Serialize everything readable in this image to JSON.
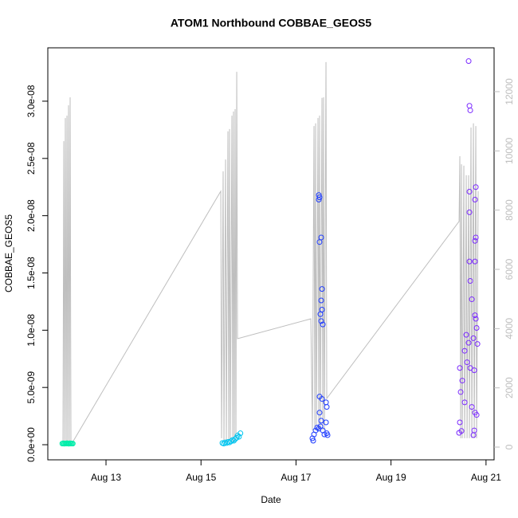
{
  "chart_data": {
    "type": "scatter",
    "title": "ATOM1 Northbound COBBAE_GEOS5",
    "x_label": "Date",
    "y_label": "COBBAE_GEOS5",
    "xlim": [
      11.775,
      21.17
    ],
    "xticks": [
      {
        "value": 13,
        "label": "Aug 13"
      },
      {
        "value": 15,
        "label": "Aug 15"
      },
      {
        "value": 17,
        "label": "Aug 17"
      },
      {
        "value": 19,
        "label": "Aug 19"
      },
      {
        "value": 21,
        "label": "Aug 21"
      }
    ],
    "ylim": [
      -1.32e-09,
      3.466e-08
    ],
    "yticks": [
      {
        "value": 0,
        "label": "0.0e+00"
      },
      {
        "value": 5e-09,
        "label": "5.0e-09"
      },
      {
        "value": 1e-08,
        "label": "1.0e-08"
      },
      {
        "value": 1.5e-08,
        "label": "1.5e-08"
      },
      {
        "value": 2e-08,
        "label": "2.0e-08"
      },
      {
        "value": 2.5e-08,
        "label": "2.5e-08"
      },
      {
        "value": 3e-08,
        "label": "3.0e-08"
      }
    ],
    "y2lim": [
      -430,
      13480
    ],
    "y2ticks": [
      0,
      2000,
      4000,
      6000,
      8000,
      10000,
      12000
    ],
    "series": [
      {
        "color": "#00eeaa",
        "x": [
          12.08,
          12.1,
          12.12,
          12.14,
          12.16,
          12.18,
          12.2,
          12.22,
          12.24,
          12.26,
          12.28,
          12.3
        ],
        "values": [
          1e-10,
          1.2e-10,
          9e-11,
          1.1e-10,
          1e-10,
          1.3e-10,
          1e-10,
          9e-11,
          1.2e-10,
          1e-10,
          1.1e-10,
          1e-10
        ]
      },
      {
        "color": "#00c5f0",
        "x": [
          15.45,
          15.48,
          15.51,
          15.54,
          15.57,
          15.6,
          15.63,
          15.66,
          15.69,
          15.72,
          15.75,
          15.77,
          15.8,
          15.83
        ],
        "values": [
          1.5e-10,
          1e-10,
          2e-10,
          1.5e-10,
          2.5e-10,
          2e-10,
          3e-10,
          4e-10,
          3.5e-10,
          5e-10,
          6e-10,
          8e-10,
          7e-10,
          1e-09
        ]
      },
      {
        "color": "#1e3cff",
        "x": [
          17.48,
          17.496,
          17.48,
          17.53,
          17.496,
          17.547,
          17.53,
          17.547,
          17.513,
          17.564,
          17.53,
          17.496,
          17.547,
          17.631,
          17.647,
          17.496,
          17.53,
          17.345,
          17.379,
          17.413,
          17.446,
          17.48,
          17.513,
          17.564,
          17.597,
          17.631,
          17.647,
          17.664,
          17.362
        ],
        "values": [
          2.18e-08,
          2.16e-08,
          2.14e-08,
          1.81e-08,
          1.77e-08,
          1.36e-08,
          1.26e-08,
          1.18e-08,
          1.14e-08,
          1.05e-08,
          1.08e-08,
          4.2e-09,
          4e-09,
          3.7e-09,
          3.3e-09,
          2.8e-09,
          2.1e-09,
          5.6e-10,
          9e-10,
          1.25e-09,
          1.5e-09,
          1.4e-09,
          1.6e-09,
          1.25e-09,
          9e-10,
          1.95e-09,
          1e-09,
          8.4e-10,
          3.5e-10
        ]
      },
      {
        "color": "#7b2aff",
        "x": [
          20.634,
          20.651,
          20.668,
          20.651,
          20.785,
          20.768,
          20.651,
          20.785,
          20.768,
          20.651,
          20.768,
          20.668,
          20.701,
          20.768,
          20.785,
          20.584,
          20.634,
          20.735,
          20.802,
          20.819,
          20.55,
          20.601,
          20.668,
          20.752,
          20.449,
          20.5,
          20.466,
          20.55,
          20.701,
          20.768,
          20.802,
          20.449,
          20.433,
          20.483,
          20.752,
          20.735
        ],
        "values": [
          3.35e-08,
          2.96e-08,
          2.92e-08,
          2.21e-08,
          2.25e-08,
          2.14e-08,
          2.03e-08,
          1.81e-08,
          1.78e-08,
          1.6e-08,
          1.6e-08,
          1.43e-08,
          1.27e-08,
          1.13e-08,
          1.1e-08,
          9.6e-09,
          8.9e-09,
          9.3e-09,
          1.02e-08,
          8.8e-09,
          8.2e-09,
          7.2e-09,
          6.7e-09,
          6.5e-09,
          6.7e-09,
          5.6e-09,
          4.6e-09,
          3.7e-09,
          3.3e-09,
          2.8e-09,
          2.6e-09,
          1.95e-09,
          1.04e-09,
          1.2e-09,
          1.25e-09,
          8.4e-10
        ]
      },
      {
        "type": "line",
        "axis": "y2",
        "color": "#bebebe",
        "x": [
          12.094,
          12.111,
          12.127,
          12.144,
          12.161,
          12.178,
          12.194,
          12.211,
          12.228,
          12.245,
          12.262,
          12.295,
          15.416,
          15.433,
          15.466,
          15.483,
          15.517,
          15.533,
          15.567,
          15.584,
          15.601,
          15.617,
          15.651,
          15.668,
          15.684,
          15.701,
          15.718,
          15.735,
          15.752,
          15.768,
          17.312,
          17.345,
          17.379,
          17.396,
          17.413,
          17.429,
          17.463,
          17.48,
          17.496,
          17.513,
          17.547,
          17.564,
          17.58,
          17.597,
          17.631,
          17.647,
          20.433,
          20.449,
          20.466,
          20.483,
          20.5,
          20.533,
          20.55,
          20.584,
          20.601,
          20.634,
          20.651,
          20.684,
          20.701,
          20.735,
          20.752,
          20.785,
          20.802,
          20.835
        ],
        "values": [
          30,
          10330,
          30,
          11110,
          30,
          11190,
          30,
          11540,
          30,
          11810,
          30,
          160,
          8640,
          300,
          9310,
          160,
          9710,
          160,
          10660,
          160,
          10740,
          160,
          11190,
          160,
          11330,
          160,
          11410,
          160,
          12670,
          3660,
          4330,
          570,
          10840,
          570,
          10930,
          570,
          11110,
          570,
          11190,
          570,
          11790,
          570,
          11810,
          570,
          13000,
          1640,
          7620,
          9820,
          300,
          9550,
          300,
          9500,
          300,
          9180,
          300,
          9180,
          300,
          10790,
          300,
          10930,
          300,
          10840,
          300,
          8640
        ]
      }
    ]
  }
}
